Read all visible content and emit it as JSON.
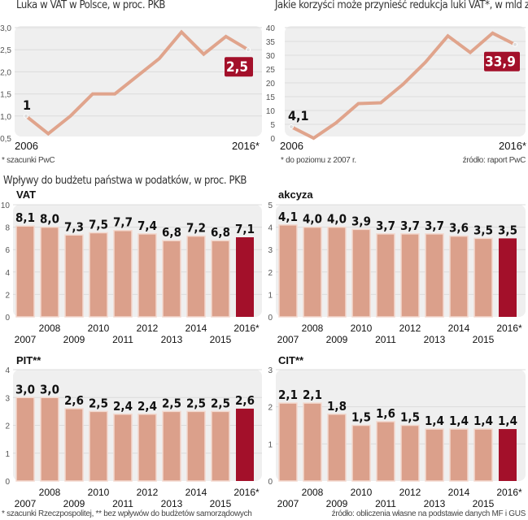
{
  "colors": {
    "line": "#e0a48c",
    "bar": "#dba08b",
    "bar_highlight": "#a3102a",
    "plot_bg": "#efefef",
    "grid": "#dcdcdc"
  },
  "top_left": {
    "title": "Luka w VAT w Polsce, w proc. PKB",
    "footnote": "* szacunki PwC"
  },
  "top_right": {
    "title": "Jakie korzyści może przynieść redukcja luki VAT*, w mld zł",
    "footnote": "* do poziomu z 2007 r.",
    "source": "źródło: raport PwC"
  },
  "bottom": {
    "title": "Wpływy do budżetu państwa w podatków, w proc. PKB",
    "footnote": "* szacunki Rzeczpospolitej, ** bez wpływów do budżetów samorządowych",
    "source": "źródło: obliczenia własne na podstawie danych MF i GUS"
  },
  "chart_data": [
    {
      "type": "line",
      "title": "Luka w VAT w Polsce, w proc. PKB",
      "x": [
        2006,
        2007,
        2008,
        2009,
        2010,
        2011,
        2012,
        2013,
        2014,
        2015,
        2016
      ],
      "values": [
        1.0,
        0.6,
        1.0,
        1.5,
        1.5,
        1.9,
        2.3,
        2.9,
        2.4,
        2.8,
        2.5
      ],
      "x_labels": [
        "2006",
        "2016*"
      ],
      "start_label": "1",
      "end_label": "2,5",
      "ylim": [
        0.5,
        3.0
      ],
      "yticks": [
        "0,5",
        "1,0",
        "1,5",
        "2,0",
        "2,5",
        "3,0"
      ],
      "grid": true
    },
    {
      "type": "line",
      "title": "Jakie korzyści może przynieść redukcja luki VAT*, w mld zł",
      "x": [
        2006,
        2007,
        2008,
        2009,
        2010,
        2011,
        2012,
        2013,
        2014,
        2015,
        2016
      ],
      "values": [
        4.1,
        0,
        5.5,
        12.5,
        12.8,
        19.5,
        27.5,
        37,
        31,
        38,
        33.9
      ],
      "x_labels": [
        "2006",
        "2016*"
      ],
      "start_label": "4,1",
      "end_label": "33,9",
      "ylim": [
        0,
        40
      ],
      "yticks": [
        "0",
        "5",
        "10",
        "15",
        "20",
        "25",
        "30",
        "35",
        "40"
      ],
      "grid": true
    },
    {
      "type": "bar",
      "name": "VAT",
      "categories": [
        "2007",
        "2008",
        "2009",
        "2010",
        "2011",
        "2012",
        "2013",
        "2014",
        "2015",
        "2016*"
      ],
      "values": [
        8.1,
        8.0,
        7.3,
        7.5,
        7.7,
        7.4,
        6.8,
        7.2,
        6.8,
        7.1
      ],
      "labels": [
        "8,1",
        "8,0",
        "7,3",
        "7,5",
        "7,7",
        "7,4",
        "6,8",
        "7,2",
        "6,8",
        "7,1"
      ],
      "ylim": [
        0,
        10
      ],
      "yticks": [
        "0",
        "2",
        "4",
        "6",
        "8",
        "10"
      ]
    },
    {
      "type": "bar",
      "name": "akcyza",
      "categories": [
        "2007",
        "2008",
        "2009",
        "2010",
        "2011",
        "2012",
        "2013",
        "2014",
        "2015",
        "2016*"
      ],
      "values": [
        4.1,
        4.0,
        4.0,
        3.9,
        3.7,
        3.7,
        3.7,
        3.6,
        3.5,
        3.5
      ],
      "labels": [
        "4,1",
        "4,0",
        "4,0",
        "3,9",
        "3,7",
        "3,7",
        "3,7",
        "3,6",
        "3,5",
        "3,5"
      ],
      "ylim": [
        0,
        5
      ],
      "yticks": [
        "0",
        "1",
        "2",
        "3",
        "4",
        "5"
      ]
    },
    {
      "type": "bar",
      "name": "PIT**",
      "categories": [
        "2007",
        "2008",
        "2009",
        "2010",
        "2011",
        "2012",
        "2013",
        "2014",
        "2015",
        "2016*"
      ],
      "values": [
        3.0,
        3.0,
        2.6,
        2.5,
        2.4,
        2.4,
        2.5,
        2.5,
        2.5,
        2.6
      ],
      "labels": [
        "3,0",
        "3,0",
        "2,6",
        "2,5",
        "2,4",
        "2,4",
        "2,5",
        "2,5",
        "2,5",
        "2,6"
      ],
      "ylim": [
        0,
        4
      ],
      "yticks": [
        "0",
        "1",
        "2",
        "3",
        "4"
      ]
    },
    {
      "type": "bar",
      "name": "CIT**",
      "categories": [
        "2007",
        "2008",
        "2009",
        "2010",
        "2011",
        "2012",
        "2013",
        "2014",
        "2015",
        "2016*"
      ],
      "values": [
        2.1,
        2.1,
        1.8,
        1.5,
        1.6,
        1.5,
        1.4,
        1.4,
        1.4,
        1.4
      ],
      "labels": [
        "2,1",
        "2,1",
        "1,8",
        "1,5",
        "1,6",
        "1,5",
        "1,4",
        "1,4",
        "1,4",
        "1,4"
      ],
      "ylim": [
        0,
        3
      ],
      "yticks": [
        "0",
        "1",
        "2",
        "3"
      ]
    }
  ]
}
